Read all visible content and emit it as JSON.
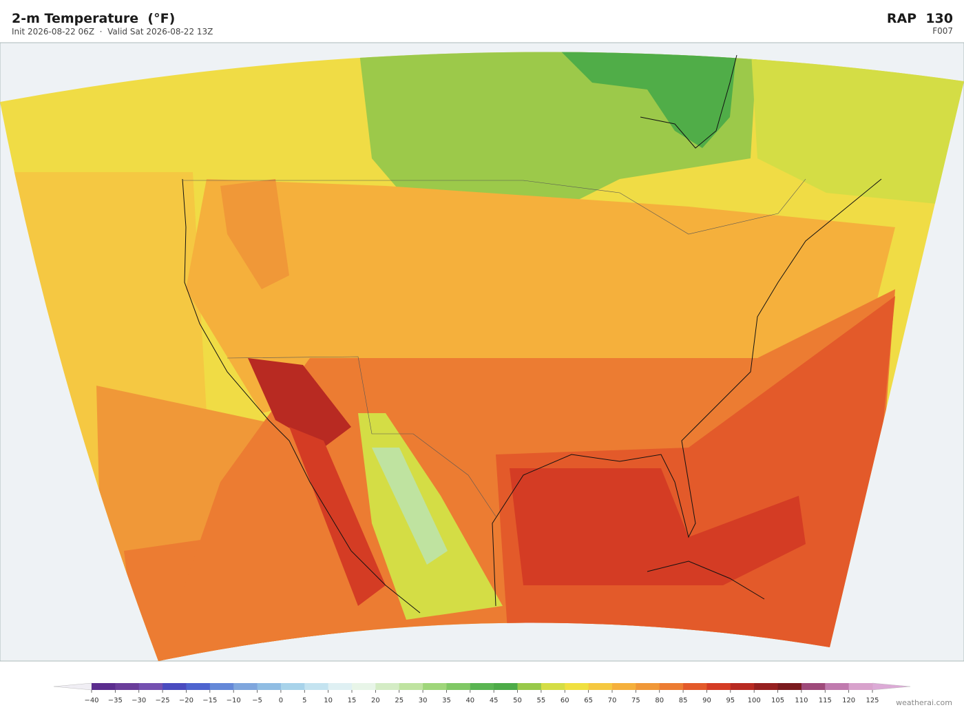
{
  "header": {
    "title": "2-m Temperature  (°F)",
    "subtitle": "Init 2026-08-22 06Z  ·  Valid Sat 2026-08-22 13Z",
    "model": "RAP  130",
    "forecast_hour": "F007"
  },
  "colorbar": {
    "ticks": [
      {
        "value": -40,
        "label": "−40"
      },
      {
        "value": -35,
        "label": "−35"
      },
      {
        "value": -30,
        "label": "−30"
      },
      {
        "value": -25,
        "label": "−25"
      },
      {
        "value": -20,
        "label": "−20"
      },
      {
        "value": -15,
        "label": "−15"
      },
      {
        "value": -10,
        "label": "−10"
      },
      {
        "value": -5,
        "label": "−5"
      },
      0,
      5,
      10,
      15,
      20,
      25,
      30,
      35,
      40,
      45,
      50,
      55,
      60,
      65,
      70,
      75,
      80,
      85,
      90,
      95,
      100,
      105,
      110,
      115,
      120,
      125
    ],
    "colors": [
      "#5b2d8e",
      "#6a3d9a",
      "#7450b0",
      "#4a4bbf",
      "#4e64cf",
      "#6488d8",
      "#7fa6dd",
      "#90bde3",
      "#a8d3ea",
      "#c4e3f0",
      "#dff0f3",
      "#e8f5e8",
      "#d4ecc5",
      "#bfe3a0",
      "#9fd67a",
      "#80c865",
      "#5ab552",
      "#4dab48",
      "#98c94a",
      "#d4dd45",
      "#f0e040",
      "#f5c840",
      "#f5b03c",
      "#f09838",
      "#ec7c32",
      "#e35a2a",
      "#d43c24",
      "#b82a22",
      "#962020",
      "#7a1a1e",
      "#9e4a7a",
      "#c07aae",
      "#d8a2cc"
    ],
    "under_color": "#f0eef4",
    "over_color": "#dcaad6"
  },
  "credit": "weatherai.com"
}
